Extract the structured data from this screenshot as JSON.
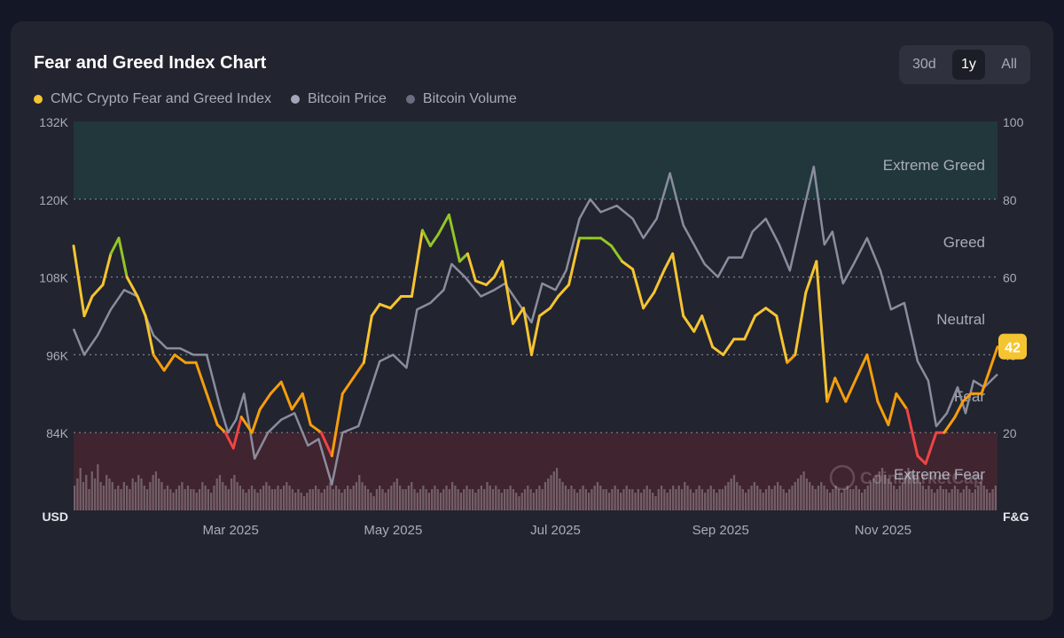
{
  "page": {
    "title": "Fear and Greed Index Chart",
    "ranges": [
      "30d",
      "1y",
      "All"
    ],
    "selected_range": "1y",
    "watermark": "CoinMarketCap"
  },
  "legend": [
    {
      "label": "CMC Crypto Fear and Greed Index",
      "color": "#f5c431"
    },
    {
      "label": "Bitcoin Price",
      "color": "#a3a6b8"
    },
    {
      "label": "Bitcoin Volume",
      "color": "#6b6e80"
    }
  ],
  "colors": {
    "extreme_greed": "#16a34a",
    "greed": "#93c525",
    "neutral": "#f5c431",
    "fear": "#f59e0b",
    "extreme_fear": "#ef4444",
    "price_line": "#8a8d9e",
    "volume": "#9c8f97"
  },
  "chart_data": {
    "type": "line",
    "title": "Fear and Greed Index Chart",
    "x_axis": {
      "range": [
        "2025-01-01",
        "2025-12-14"
      ],
      "tick_labels": [
        "Mar 2025",
        "May 2025",
        "Jul 2025",
        "Sep 2025",
        "Nov 2025"
      ],
      "tick_dates": [
        "2025-03-01",
        "2025-05-01",
        "2025-07-01",
        "2025-09-01",
        "2025-11-01"
      ]
    },
    "y_left": {
      "label": "USD",
      "range": [
        72000,
        132000
      ],
      "ticks": [
        84000,
        96000,
        108000,
        120000,
        132000
      ],
      "tick_labels": [
        "84K",
        "96K",
        "108K",
        "120K",
        "132K"
      ]
    },
    "y_right": {
      "label": "F&G",
      "range": [
        0,
        100
      ],
      "ticks": [
        20,
        40,
        60,
        80,
        100
      ],
      "tick_labels": [
        "20",
        "40",
        "60",
        "80",
        "100"
      ]
    },
    "zones": [
      {
        "label": "Extreme Greed",
        "from": 80,
        "to": 100
      },
      {
        "label": "Greed",
        "from": 60,
        "to": 80
      },
      {
        "label": "Neutral",
        "from": 40,
        "to": 60
      },
      {
        "label": "Fear",
        "from": 20,
        "to": 40
      },
      {
        "label": "Extreme Fear",
        "from": 0,
        "to": 20
      }
    ],
    "current_value": {
      "value": 42,
      "label": "42"
    },
    "grid": true,
    "series": [
      {
        "name": "CMC Crypto Fear and Greed Index",
        "axis": "right",
        "points": [
          [
            "2025-01-01",
            68
          ],
          [
            "2025-01-05",
            50
          ],
          [
            "2025-01-08",
            55
          ],
          [
            "2025-01-12",
            58
          ],
          [
            "2025-01-15",
            66
          ],
          [
            "2025-01-18",
            70
          ],
          [
            "2025-01-21",
            60
          ],
          [
            "2025-01-25",
            55
          ],
          [
            "2025-01-28",
            50
          ],
          [
            "2025-01-31",
            40
          ],
          [
            "2025-02-04",
            36
          ],
          [
            "2025-02-08",
            40
          ],
          [
            "2025-02-12",
            38
          ],
          [
            "2025-02-16",
            38
          ],
          [
            "2025-02-20",
            30
          ],
          [
            "2025-02-24",
            22
          ],
          [
            "2025-02-27",
            20
          ],
          [
            "2025-03-02",
            16
          ],
          [
            "2025-03-05",
            24
          ],
          [
            "2025-03-09",
            20
          ],
          [
            "2025-03-12",
            26
          ],
          [
            "2025-03-16",
            30
          ],
          [
            "2025-03-20",
            33
          ],
          [
            "2025-03-24",
            26
          ],
          [
            "2025-03-28",
            30
          ],
          [
            "2025-03-31",
            22
          ],
          [
            "2025-04-04",
            20
          ],
          [
            "2025-04-08",
            14
          ],
          [
            "2025-04-12",
            30
          ],
          [
            "2025-04-16",
            34
          ],
          [
            "2025-04-20",
            38
          ],
          [
            "2025-04-23",
            50
          ],
          [
            "2025-04-26",
            53
          ],
          [
            "2025-04-30",
            52
          ],
          [
            "2025-05-04",
            55
          ],
          [
            "2025-05-08",
            55
          ],
          [
            "2025-05-12",
            72
          ],
          [
            "2025-05-15",
            68
          ],
          [
            "2025-05-18",
            71
          ],
          [
            "2025-05-22",
            76
          ],
          [
            "2025-05-26",
            64
          ],
          [
            "2025-05-29",
            66
          ],
          [
            "2025-06-01",
            59
          ],
          [
            "2025-06-05",
            58
          ],
          [
            "2025-06-08",
            60
          ],
          [
            "2025-06-11",
            64
          ],
          [
            "2025-06-15",
            48
          ],
          [
            "2025-06-19",
            52
          ],
          [
            "2025-06-22",
            40
          ],
          [
            "2025-06-25",
            50
          ],
          [
            "2025-06-29",
            52
          ],
          [
            "2025-07-02",
            55
          ],
          [
            "2025-07-06",
            58
          ],
          [
            "2025-07-10",
            70
          ],
          [
            "2025-07-14",
            70
          ],
          [
            "2025-07-18",
            70
          ],
          [
            "2025-07-22",
            68
          ],
          [
            "2025-07-26",
            64
          ],
          [
            "2025-07-30",
            62
          ],
          [
            "2025-08-03",
            52
          ],
          [
            "2025-08-07",
            56
          ],
          [
            "2025-08-11",
            62
          ],
          [
            "2025-08-14",
            66
          ],
          [
            "2025-08-18",
            50
          ],
          [
            "2025-08-22",
            46
          ],
          [
            "2025-08-25",
            50
          ],
          [
            "2025-08-29",
            42
          ],
          [
            "2025-09-02",
            40
          ],
          [
            "2025-09-06",
            44
          ],
          [
            "2025-09-10",
            44
          ],
          [
            "2025-09-14",
            50
          ],
          [
            "2025-09-18",
            52
          ],
          [
            "2025-09-22",
            50
          ],
          [
            "2025-09-26",
            38
          ],
          [
            "2025-09-29",
            40
          ],
          [
            "2025-10-03",
            56
          ],
          [
            "2025-10-07",
            64
          ],
          [
            "2025-10-11",
            28
          ],
          [
            "2025-10-14",
            34
          ],
          [
            "2025-10-18",
            28
          ],
          [
            "2025-10-22",
            34
          ],
          [
            "2025-10-26",
            40
          ],
          [
            "2025-10-30",
            28
          ],
          [
            "2025-11-03",
            22
          ],
          [
            "2025-11-06",
            30
          ],
          [
            "2025-11-10",
            26
          ],
          [
            "2025-11-14",
            14
          ],
          [
            "2025-11-17",
            12
          ],
          [
            "2025-11-21",
            20
          ],
          [
            "2025-11-24",
            20
          ],
          [
            "2025-11-28",
            24
          ],
          [
            "2025-12-01",
            28
          ],
          [
            "2025-12-04",
            30
          ],
          [
            "2025-12-08",
            30
          ],
          [
            "2025-12-11",
            36
          ],
          [
            "2025-12-14",
            42
          ]
        ]
      },
      {
        "name": "Bitcoin Price",
        "axis": "left",
        "points": [
          [
            "2025-01-01",
            100000
          ],
          [
            "2025-01-05",
            96000
          ],
          [
            "2025-01-10",
            99000
          ],
          [
            "2025-01-15",
            103000
          ],
          [
            "2025-01-20",
            106000
          ],
          [
            "2025-01-25",
            105000
          ],
          [
            "2025-01-31",
            99000
          ],
          [
            "2025-02-05",
            97000
          ],
          [
            "2025-02-10",
            97000
          ],
          [
            "2025-02-15",
            96000
          ],
          [
            "2025-02-20",
            96000
          ],
          [
            "2025-02-25",
            88000
          ],
          [
            "2025-02-28",
            84000
          ],
          [
            "2025-03-03",
            86000
          ],
          [
            "2025-03-06",
            90000
          ],
          [
            "2025-03-10",
            80000
          ],
          [
            "2025-03-15",
            84000
          ],
          [
            "2025-03-20",
            86000
          ],
          [
            "2025-03-25",
            87000
          ],
          [
            "2025-03-30",
            82000
          ],
          [
            "2025-04-03",
            83000
          ],
          [
            "2025-04-08",
            76000
          ],
          [
            "2025-04-12",
            84000
          ],
          [
            "2025-04-18",
            85000
          ],
          [
            "2025-04-22",
            90000
          ],
          [
            "2025-04-26",
            95000
          ],
          [
            "2025-05-01",
            96000
          ],
          [
            "2025-05-06",
            94000
          ],
          [
            "2025-05-10",
            103000
          ],
          [
            "2025-05-15",
            104000
          ],
          [
            "2025-05-20",
            106000
          ],
          [
            "2025-05-23",
            110000
          ],
          [
            "2025-05-28",
            108000
          ],
          [
            "2025-06-03",
            105000
          ],
          [
            "2025-06-08",
            106000
          ],
          [
            "2025-06-12",
            107000
          ],
          [
            "2025-06-17",
            104000
          ],
          [
            "2025-06-22",
            101000
          ],
          [
            "2025-06-26",
            107000
          ],
          [
            "2025-07-01",
            106000
          ],
          [
            "2025-07-05",
            109000
          ],
          [
            "2025-07-10",
            117000
          ],
          [
            "2025-07-14",
            120000
          ],
          [
            "2025-07-18",
            118000
          ],
          [
            "2025-07-24",
            119000
          ],
          [
            "2025-07-30",
            117000
          ],
          [
            "2025-08-03",
            114000
          ],
          [
            "2025-08-08",
            117000
          ],
          [
            "2025-08-13",
            124000
          ],
          [
            "2025-08-18",
            116000
          ],
          [
            "2025-08-22",
            113000
          ],
          [
            "2025-08-26",
            110000
          ],
          [
            "2025-08-31",
            108000
          ],
          [
            "2025-09-04",
            111000
          ],
          [
            "2025-09-09",
            111000
          ],
          [
            "2025-09-13",
            115000
          ],
          [
            "2025-09-18",
            117000
          ],
          [
            "2025-09-23",
            113000
          ],
          [
            "2025-09-27",
            109000
          ],
          [
            "2025-10-02",
            118000
          ],
          [
            "2025-10-06",
            125000
          ],
          [
            "2025-10-10",
            113000
          ],
          [
            "2025-10-13",
            115000
          ],
          [
            "2025-10-17",
            107000
          ],
          [
            "2025-10-21",
            110000
          ],
          [
            "2025-10-26",
            114000
          ],
          [
            "2025-10-31",
            109000
          ],
          [
            "2025-11-04",
            103000
          ],
          [
            "2025-11-09",
            104000
          ],
          [
            "2025-11-14",
            95000
          ],
          [
            "2025-11-18",
            92000
          ],
          [
            "2025-11-21",
            85000
          ],
          [
            "2025-11-25",
            87000
          ],
          [
            "2025-11-29",
            91000
          ],
          [
            "2025-12-02",
            87000
          ],
          [
            "2025-12-05",
            92000
          ],
          [
            "2025-12-09",
            91000
          ],
          [
            "2025-12-14",
            93000
          ]
        ]
      },
      {
        "name": "Bitcoin Volume",
        "axis": "none",
        "relative_values": [
          0.35,
          0.45,
          0.6,
          0.4,
          0.5,
          0.3,
          0.55,
          0.45,
          0.65,
          0.4,
          0.35,
          0.5,
          0.45,
          0.4,
          0.3,
          0.35,
          0.3,
          0.4,
          0.35,
          0.3,
          0.45,
          0.4,
          0.5,
          0.45,
          0.35,
          0.3,
          0.4,
          0.5,
          0.55,
          0.45,
          0.4,
          0.3,
          0.35,
          0.3,
          0.25,
          0.3,
          0.35,
          0.4,
          0.3,
          0.35,
          0.3,
          0.3,
          0.25,
          0.3,
          0.4,
          0.35,
          0.3,
          0.25,
          0.35,
          0.45,
          0.5,
          0.4,
          0.35,
          0.3,
          0.45,
          0.5,
          0.4,
          0.35,
          0.3,
          0.25,
          0.3,
          0.35,
          0.3,
          0.25,
          0.3,
          0.35,
          0.4,
          0.35,
          0.3,
          0.3,
          0.35,
          0.3,
          0.35,
          0.4,
          0.35,
          0.3,
          0.25,
          0.3,
          0.25,
          0.2,
          0.25,
          0.3,
          0.3,
          0.35,
          0.3,
          0.25,
          0.3,
          0.35,
          0.4,
          0.3,
          0.35,
          0.3,
          0.25,
          0.3,
          0.35,
          0.3,
          0.35,
          0.4,
          0.5,
          0.4,
          0.35,
          0.3,
          0.25,
          0.2,
          0.3,
          0.35,
          0.3,
          0.25,
          0.3,
          0.35,
          0.4,
          0.45,
          0.35,
          0.3,
          0.3,
          0.35,
          0.4,
          0.3,
          0.25,
          0.3,
          0.35,
          0.3,
          0.25,
          0.3,
          0.35,
          0.3,
          0.25,
          0.3,
          0.35,
          0.3,
          0.4,
          0.35,
          0.3,
          0.25,
          0.3,
          0.35,
          0.3,
          0.3,
          0.25,
          0.3,
          0.35,
          0.3,
          0.4,
          0.35,
          0.3,
          0.35,
          0.3,
          0.25,
          0.3,
          0.3,
          0.35,
          0.3,
          0.25,
          0.2,
          0.25,
          0.3,
          0.35,
          0.3,
          0.25,
          0.3,
          0.35,
          0.3,
          0.4,
          0.45,
          0.5,
          0.55,
          0.6,
          0.45,
          0.4,
          0.35,
          0.3,
          0.35,
          0.3,
          0.25,
          0.3,
          0.35,
          0.3,
          0.25,
          0.3,
          0.35,
          0.4,
          0.35,
          0.3,
          0.3,
          0.25,
          0.3,
          0.35,
          0.3,
          0.25,
          0.3,
          0.35,
          0.3,
          0.3,
          0.25,
          0.3,
          0.25,
          0.3,
          0.35,
          0.3,
          0.25,
          0.2,
          0.3,
          0.35,
          0.3,
          0.25,
          0.3,
          0.35,
          0.3,
          0.35,
          0.3,
          0.4,
          0.35,
          0.3,
          0.25,
          0.3,
          0.35,
          0.3,
          0.25,
          0.3,
          0.35,
          0.3,
          0.25,
          0.3,
          0.3,
          0.35,
          0.4,
          0.45,
          0.5,
          0.4,
          0.35,
          0.3,
          0.25,
          0.3,
          0.35,
          0.4,
          0.35,
          0.3,
          0.25,
          0.3,
          0.35,
          0.3,
          0.35,
          0.4,
          0.35,
          0.3,
          0.25,
          0.3,
          0.35,
          0.4,
          0.45,
          0.5,
          0.55,
          0.45,
          0.4,
          0.35,
          0.3,
          0.35,
          0.4,
          0.35,
          0.3,
          0.25,
          0.3,
          0.35,
          0.3,
          0.25,
          0.3,
          0.35,
          0.3,
          0.3,
          0.35,
          0.3,
          0.25,
          0.3,
          0.35,
          0.4,
          0.45,
          0.5,
          0.55,
          0.6,
          0.5,
          0.45,
          0.4,
          0.35,
          0.3,
          0.35,
          0.4,
          0.5,
          0.6,
          0.55,
          0.5,
          0.45,
          0.4,
          0.35,
          0.3,
          0.35,
          0.3,
          0.25,
          0.3,
          0.35,
          0.3,
          0.3,
          0.25,
          0.3,
          0.35,
          0.3,
          0.25,
          0.3,
          0.35,
          0.3,
          0.25,
          0.3,
          0.35,
          0.4,
          0.35,
          0.3,
          0.25,
          0.3,
          0.35
        ]
      }
    ]
  }
}
